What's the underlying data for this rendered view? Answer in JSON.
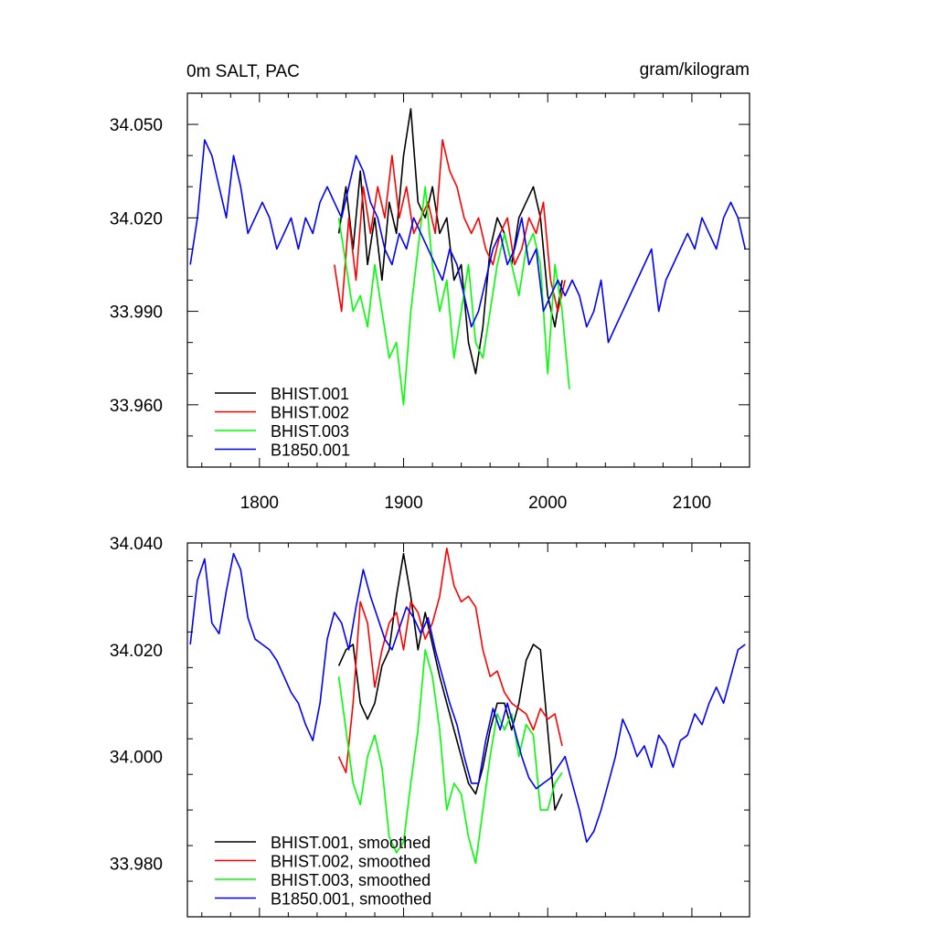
{
  "chart_data": [
    {
      "type": "line",
      "title": "0m SALT, PAC",
      "units": "gram/kilogram",
      "xlim": [
        1750,
        2140
      ],
      "ylim": [
        33.94,
        34.06
      ],
      "x_ticks": [
        1800,
        1900,
        2000,
        2100
      ],
      "x_tick_labels": [
        "1800",
        "1900",
        "2000",
        "2100"
      ],
      "y_ticks": [
        33.96,
        33.99,
        34.02,
        34.05
      ],
      "y_tick_labels": [
        "33.960",
        "33.990",
        "34.020",
        "34.050"
      ],
      "legend_position": "bottom-left",
      "series": [
        {
          "name": "BHIST.001",
          "color": "#000000",
          "x": [
            1855,
            1860,
            1865,
            1870,
            1875,
            1880,
            1885,
            1890,
            1895,
            1900,
            1905,
            1910,
            1915,
            1920,
            1925,
            1930,
            1935,
            1940,
            1945,
            1950,
            1955,
            1960,
            1965,
            1970,
            1975,
            1980,
            1985,
            1990,
            1995,
            2000,
            2005,
            2010
          ],
          "y": [
            34.015,
            34.03,
            34.01,
            34.035,
            34.005,
            34.02,
            34.0,
            34.025,
            34.015,
            34.04,
            34.055,
            34.025,
            34.02,
            34.03,
            34.015,
            34.02,
            34.0,
            34.005,
            33.98,
            33.97,
            33.985,
            34.01,
            34.02,
            34.015,
            34.005,
            34.02,
            34.025,
            34.03,
            34.02,
            33.995,
            33.985,
            34.0
          ]
        },
        {
          "name": "BHIST.002",
          "color": "#ff0000",
          "x": [
            1852,
            1857,
            1862,
            1867,
            1872,
            1877,
            1882,
            1887,
            1892,
            1897,
            1902,
            1907,
            1912,
            1917,
            1922,
            1927,
            1932,
            1937,
            1942,
            1947,
            1952,
            1957,
            1962,
            1967,
            1972,
            1977,
            1982,
            1987,
            1992,
            1997,
            2002,
            2007,
            2012
          ],
          "y": [
            34.005,
            33.99,
            34.02,
            34.0,
            34.03,
            34.015,
            34.03,
            34.02,
            34.04,
            34.02,
            34.03,
            34.015,
            34.02,
            34.025,
            34.015,
            34.045,
            34.035,
            34.03,
            34.02,
            34.015,
            34.02,
            34.01,
            34.005,
            34.015,
            34.02,
            34.005,
            34.01,
            34.02,
            34.015,
            34.025,
            34.0,
            33.99,
            34.0
          ]
        },
        {
          "name": "BHIST.003",
          "color": "#00ff00",
          "x": [
            1855,
            1860,
            1865,
            1870,
            1875,
            1880,
            1885,
            1890,
            1895,
            1900,
            1905,
            1910,
            1915,
            1920,
            1925,
            1930,
            1935,
            1940,
            1945,
            1950,
            1955,
            1960,
            1965,
            1970,
            1975,
            1980,
            1985,
            1990,
            1995,
            2000,
            2005,
            2010,
            2015
          ],
          "y": [
            34.02,
            34.005,
            33.99,
            33.995,
            33.985,
            34.005,
            33.99,
            33.975,
            33.98,
            33.96,
            33.99,
            34.01,
            34.03,
            34.005,
            33.99,
            34.0,
            33.975,
            33.99,
            34.005,
            33.98,
            33.975,
            33.99,
            34.005,
            34.015,
            34.005,
            33.995,
            34.01,
            34.015,
            34.005,
            33.97,
            34.005,
            33.99,
            33.965
          ]
        },
        {
          "name": "B1850.001",
          "color": "#0000ff",
          "x": [
            1752,
            1757,
            1762,
            1767,
            1772,
            1777,
            1782,
            1787,
            1792,
            1797,
            1802,
            1807,
            1812,
            1817,
            1822,
            1827,
            1832,
            1837,
            1842,
            1847,
            1852,
            1857,
            1862,
            1867,
            1872,
            1877,
            1882,
            1887,
            1892,
            1897,
            1902,
            1907,
            1912,
            1917,
            1922,
            1927,
            1932,
            1937,
            1942,
            1947,
            1952,
            1957,
            1962,
            1967,
            1972,
            1977,
            1982,
            1987,
            1992,
            1997,
            2002,
            2007,
            2012,
            2017,
            2022,
            2027,
            2032,
            2037,
            2042,
            2047,
            2052,
            2057,
            2062,
            2067,
            2072,
            2077,
            2082,
            2087,
            2092,
            2097,
            2102,
            2107,
            2112,
            2117,
            2122,
            2127,
            2132,
            2137
          ],
          "y": [
            34.005,
            34.02,
            34.045,
            34.04,
            34.03,
            34.02,
            34.04,
            34.03,
            34.015,
            34.02,
            34.025,
            34.02,
            34.01,
            34.015,
            34.02,
            34.01,
            34.02,
            34.015,
            34.025,
            34.03,
            34.025,
            34.02,
            34.03,
            34.04,
            34.035,
            34.025,
            34.02,
            34.01,
            34.005,
            34.015,
            34.01,
            34.02,
            34.015,
            34.01,
            34.005,
            34.0,
            34.01,
            34.005,
            33.995,
            33.985,
            33.99,
            34.0,
            34.01,
            34.015,
            34.005,
            34.01,
            34.02,
            34.005,
            34.01,
            33.99,
            33.995,
            34.0,
            33.995,
            34.0,
            33.995,
            33.985,
            33.99,
            34.0,
            33.98,
            33.985,
            33.99,
            33.995,
            34.0,
            34.005,
            34.01,
            33.99,
            34.0,
            34.005,
            34.01,
            34.015,
            34.01,
            34.02,
            34.015,
            34.01,
            34.02,
            34.025,
            34.02,
            34.01
          ]
        }
      ]
    },
    {
      "type": "line",
      "xlim": [
        1750,
        2140
      ],
      "ylim": [
        33.97,
        34.04
      ],
      "x_ticks": [
        1800,
        1900,
        2000,
        2100
      ],
      "y_ticks": [
        33.98,
        34.0,
        34.02,
        34.04
      ],
      "y_tick_labels": [
        "33.980",
        "34.000",
        "34.020",
        "34.040"
      ],
      "legend_position": "bottom-left",
      "series": [
        {
          "name": "BHIST.001, smoothed",
          "color": "#000000",
          "x": [
            1855,
            1860,
            1865,
            1870,
            1875,
            1880,
            1885,
            1890,
            1895,
            1900,
            1905,
            1910,
            1915,
            1920,
            1925,
            1930,
            1935,
            1940,
            1945,
            1950,
            1955,
            1960,
            1965,
            1970,
            1975,
            1980,
            1985,
            1990,
            1995,
            2000,
            2005,
            2010
          ],
          "y": [
            34.017,
            34.02,
            34.021,
            34.01,
            34.007,
            34.01,
            34.017,
            34.02,
            34.03,
            34.038,
            34.03,
            34.02,
            34.027,
            34.021,
            34.015,
            34.01,
            34.005,
            34.0,
            33.995,
            33.993,
            33.998,
            34.005,
            34.01,
            34.01,
            34.005,
            34.01,
            34.018,
            34.021,
            34.02,
            34.005,
            33.99,
            33.993
          ]
        },
        {
          "name": "BHIST.002, smoothed",
          "color": "#ff0000",
          "x": [
            1855,
            1860,
            1865,
            1870,
            1875,
            1880,
            1885,
            1890,
            1895,
            1900,
            1905,
            1910,
            1915,
            1920,
            1925,
            1930,
            1935,
            1940,
            1945,
            1950,
            1955,
            1960,
            1965,
            1970,
            1975,
            1980,
            1985,
            1990,
            1995,
            2000,
            2005,
            2010
          ],
          "y": [
            34.0,
            33.997,
            34.01,
            34.029,
            34.025,
            34.013,
            34.02,
            34.025,
            34.027,
            34.02,
            34.029,
            34.027,
            34.022,
            34.025,
            34.03,
            34.039,
            34.032,
            34.029,
            34.03,
            34.028,
            34.02,
            34.015,
            34.016,
            34.012,
            34.01,
            34.009,
            34.008,
            34.005,
            34.009,
            34.007,
            34.008,
            34.002
          ]
        },
        {
          "name": "BHIST.003, smoothed",
          "color": "#00ff00",
          "x": [
            1855,
            1860,
            1865,
            1870,
            1875,
            1880,
            1885,
            1890,
            1895,
            1900,
            1905,
            1910,
            1915,
            1920,
            1925,
            1930,
            1935,
            1940,
            1945,
            1950,
            1955,
            1960,
            1965,
            1970,
            1975,
            1980,
            1985,
            1990,
            1995,
            2000,
            2005,
            2010
          ],
          "y": [
            34.015,
            34.005,
            33.995,
            33.991,
            34.0,
            34.004,
            33.998,
            33.985,
            33.982,
            33.984,
            33.995,
            34.005,
            34.02,
            34.015,
            34.005,
            33.99,
            33.995,
            33.993,
            33.985,
            33.98,
            33.99,
            34.0,
            34.008,
            34.005,
            34.008,
            34.0,
            34.006,
            34.004,
            33.99,
            33.99,
            33.995,
            33.997
          ]
        },
        {
          "name": "B1850.001, smoothed",
          "color": "#0000ff",
          "x": [
            1752,
            1757,
            1762,
            1767,
            1772,
            1777,
            1782,
            1787,
            1792,
            1797,
            1802,
            1807,
            1812,
            1817,
            1822,
            1827,
            1832,
            1837,
            1842,
            1847,
            1852,
            1857,
            1862,
            1867,
            1872,
            1877,
            1882,
            1887,
            1892,
            1897,
            1902,
            1907,
            1912,
            1917,
            1922,
            1927,
            1932,
            1937,
            1942,
            1947,
            1952,
            1957,
            1962,
            1967,
            1972,
            1977,
            1982,
            1987,
            1992,
            1997,
            2002,
            2007,
            2012,
            2017,
            2022,
            2027,
            2032,
            2037,
            2042,
            2047,
            2052,
            2057,
            2062,
            2067,
            2072,
            2077,
            2082,
            2087,
            2092,
            2097,
            2102,
            2107,
            2112,
            2117,
            2122,
            2127,
            2132,
            2137
          ],
          "y": [
            34.021,
            34.033,
            34.037,
            34.025,
            34.023,
            34.031,
            34.038,
            34.035,
            34.026,
            34.022,
            34.021,
            34.02,
            34.018,
            34.015,
            34.012,
            34.01,
            34.006,
            34.003,
            34.01,
            34.022,
            34.027,
            34.025,
            34.02,
            34.028,
            34.035,
            34.03,
            34.026,
            34.022,
            34.02,
            34.024,
            34.028,
            34.026,
            34.023,
            34.026,
            34.02,
            34.015,
            34.01,
            34.006,
            34.0,
            33.995,
            33.995,
            34.003,
            34.009,
            34.005,
            34.01,
            34.005,
            34.0,
            33.996,
            33.994,
            33.995,
            33.996,
            33.998,
            34.0,
            33.995,
            33.99,
            33.984,
            33.986,
            33.99,
            33.995,
            34.0,
            34.007,
            34.004,
            34.0,
            34.002,
            33.998,
            34.004,
            34.002,
            33.998,
            34.003,
            34.004,
            34.008,
            34.006,
            34.01,
            34.013,
            34.01,
            34.015,
            34.02,
            34.021
          ]
        }
      ]
    }
  ]
}
